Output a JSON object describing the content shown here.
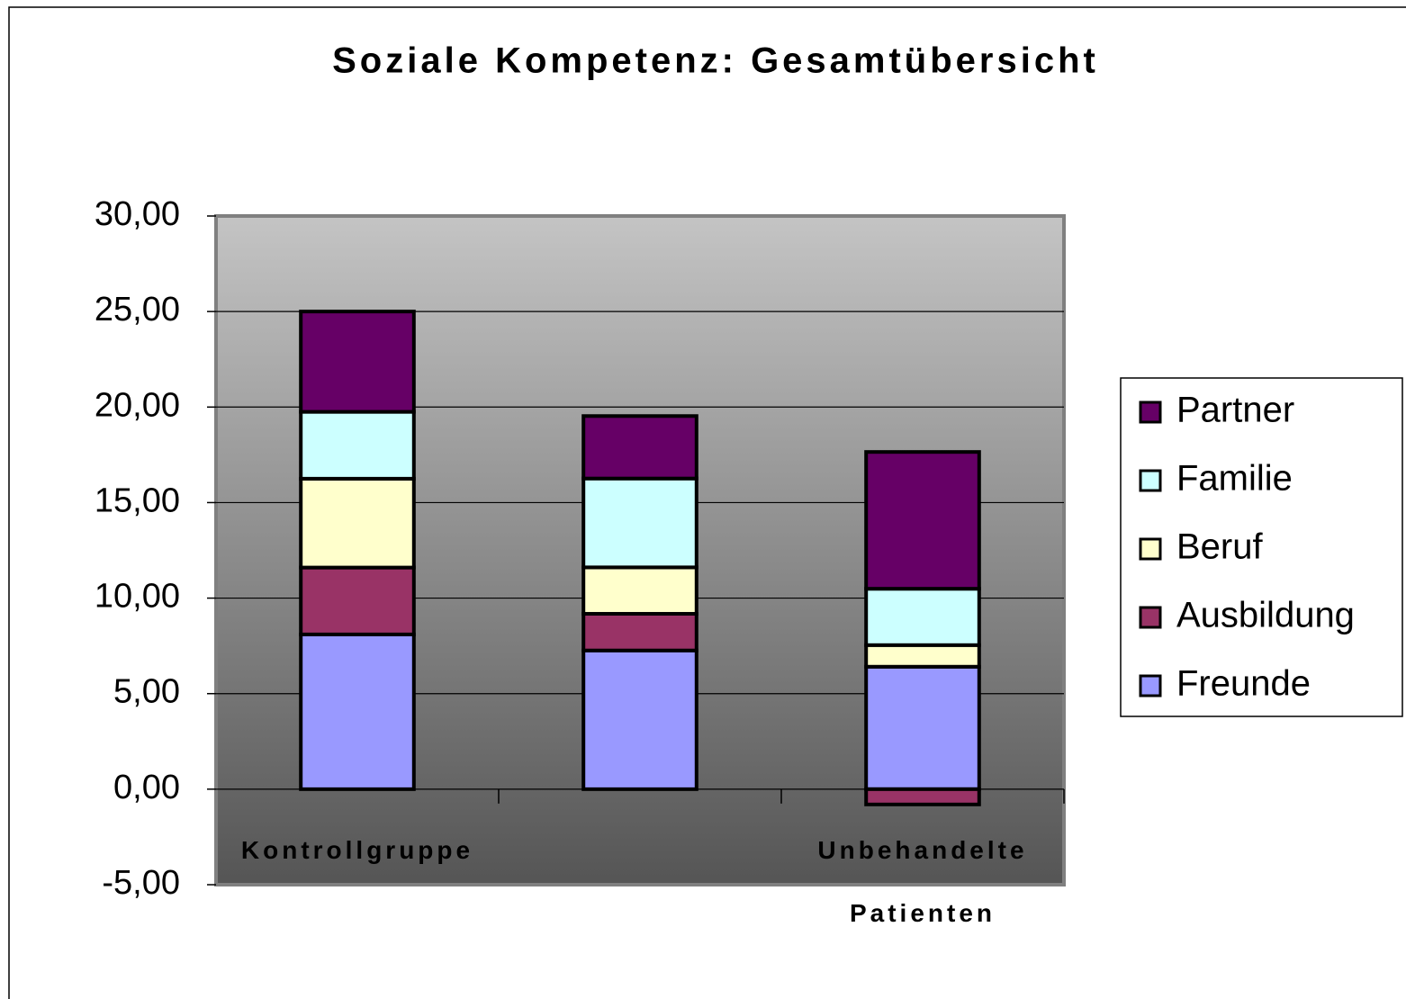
{
  "chart_data": {
    "type": "stacked_bar",
    "title": "Soziale Kompetenz: Gesamtübersicht",
    "categories": [
      "Kontrollgruppe",
      null,
      "Unbehandelte Patienten"
    ],
    "series": [
      {
        "name": "Freunde",
        "color": "#9999ff",
        "values": [
          8.1,
          7.26,
          6.41
        ]
      },
      {
        "name": "Ausbildung",
        "color": "#993366",
        "values": [
          3.5,
          1.92,
          -0.8
        ]
      },
      {
        "name": "Beruf",
        "color": "#ffffcc",
        "values": [
          4.65,
          2.43,
          1.13
        ]
      },
      {
        "name": "Familie",
        "color": "#ccffff",
        "values": [
          3.5,
          4.65,
          2.95
        ]
      },
      {
        "name": "Partner",
        "color": "#660066",
        "values": [
          5.25,
          3.27,
          7.16
        ]
      }
    ],
    "ylim": [
      -5,
      30
    ],
    "yticks": [
      {
        "value": -5,
        "label": "-5,00"
      },
      {
        "value": 0,
        "label": "0,00"
      },
      {
        "value": 5,
        "label": "5,00"
      },
      {
        "value": 10,
        "label": "10,00"
      },
      {
        "value": 15,
        "label": "15,00"
      },
      {
        "value": 20,
        "label": "20,00"
      },
      {
        "value": 25,
        "label": "25,00"
      },
      {
        "value": 30,
        "label": "30,00"
      }
    ],
    "grid": true,
    "legend": "right"
  }
}
